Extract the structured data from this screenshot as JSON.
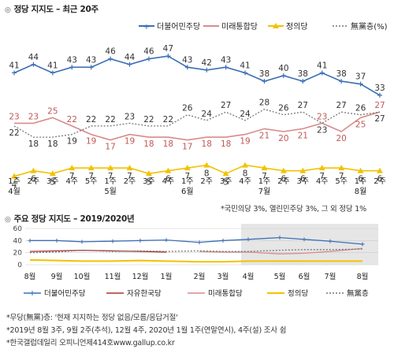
{
  "top": {
    "title": "정당 지지도 – 최근 20주",
    "footnote": "*국민의당 3%, 열린민주당 3%, 그 외 정당 1%"
  },
  "bottom": {
    "title": "주요 정당 지지도 – 2019/2020년",
    "notes": [
      "*무당(無黨)층: '현재 지지하는 정당 없음/모름/응답거절'",
      "*2019년 8월 3주, 9월 2주(추석), 12월 4주, 2020년 1월 1주(연말연시), 4주(설) 조사 쉼",
      "*한국갤럽데일리 오피니언제414호www.gallup.co.kr"
    ]
  },
  "colors": {
    "democratic": "#3b6fb6",
    "united_future": "#d98a8a",
    "justice": "#f2c200",
    "unaffiliated": "#777777",
    "liberty_korea": "#b03030",
    "shade": "#e6e6e6"
  },
  "chart_data": [
    {
      "type": "line",
      "categories": [
        "1주\n4월",
        "2주",
        "3주",
        "4주",
        "5주",
        "1주\n5월",
        "2주",
        "3주",
        "4주",
        "1주\n6월",
        "2주",
        "3주",
        "4주",
        "1주\n7월",
        "2주",
        "3주",
        "4주",
        "5주",
        "1주\n8월",
        "2주"
      ],
      "ylim": [
        0,
        50
      ],
      "legend": "top-right",
      "series": [
        {
          "name": "더불어민주당",
          "key": "democratic",
          "values": [
            41,
            44,
            41,
            43,
            43,
            46,
            44,
            46,
            47,
            43,
            42,
            43,
            41,
            38,
            40,
            38,
            41,
            38,
            37,
            33
          ],
          "marker": "plus"
        },
        {
          "name": "미래통합당",
          "key": "united_future",
          "values": [
            23,
            23,
            25,
            22,
            19,
            17,
            19,
            18,
            18,
            17,
            18,
            18,
            19,
            21,
            20,
            21,
            23,
            20,
            25,
            27
          ],
          "marker": "none"
        },
        {
          "name": "정의당",
          "key": "justice",
          "values": [
            4,
            6,
            5,
            7,
            7,
            7,
            7,
            5,
            6,
            7,
            8,
            5,
            8,
            7,
            6,
            6,
            7,
            7,
            6,
            6
          ],
          "marker": "triangle"
        },
        {
          "name": "無黨층(%)",
          "key": "unaffiliated",
          "values": [
            22,
            18,
            18,
            19,
            22,
            22,
            23,
            22,
            22,
            26,
            24,
            27,
            24,
            28,
            26,
            27,
            23,
            27,
            26,
            27
          ],
          "marker": "none"
        }
      ]
    },
    {
      "type": "line",
      "categories": [
        "8월",
        "9월",
        "10월",
        "11월",
        "12월",
        "1월",
        "2월",
        "3월",
        "4월",
        "5월",
        "6월",
        "7월",
        "8월"
      ],
      "ylim": [
        0,
        60
      ],
      "yticks": [
        0,
        20,
        40,
        60
      ],
      "legend": "bottom",
      "series": [
        {
          "name": "더불어민주당",
          "key": "democratic",
          "values": [
            40,
            40,
            38,
            39,
            40,
            41,
            37,
            40,
            42,
            45,
            42,
            39,
            34
          ]
        },
        {
          "name": "자유한국당",
          "key": "liberty_korea",
          "values": [
            22,
            23,
            24,
            23,
            22,
            21,
            null,
            null,
            null,
            null,
            null,
            null,
            null
          ]
        },
        {
          "name": "미래통합당",
          "key": "united_future",
          "values": [
            null,
            null,
            null,
            null,
            null,
            null,
            22,
            21,
            21,
            18,
            19,
            22,
            27
          ]
        },
        {
          "name": "정의당",
          "key": "justice",
          "values": [
            8,
            7,
            6,
            6,
            7,
            6,
            5,
            5,
            6,
            6,
            6,
            6,
            6
          ]
        },
        {
          "name": "無黨층",
          "key": "unaffiliated",
          "values": [
            20,
            21,
            24,
            22,
            23,
            22,
            23,
            22,
            22,
            24,
            25,
            25,
            26
          ]
        }
      ]
    }
  ]
}
